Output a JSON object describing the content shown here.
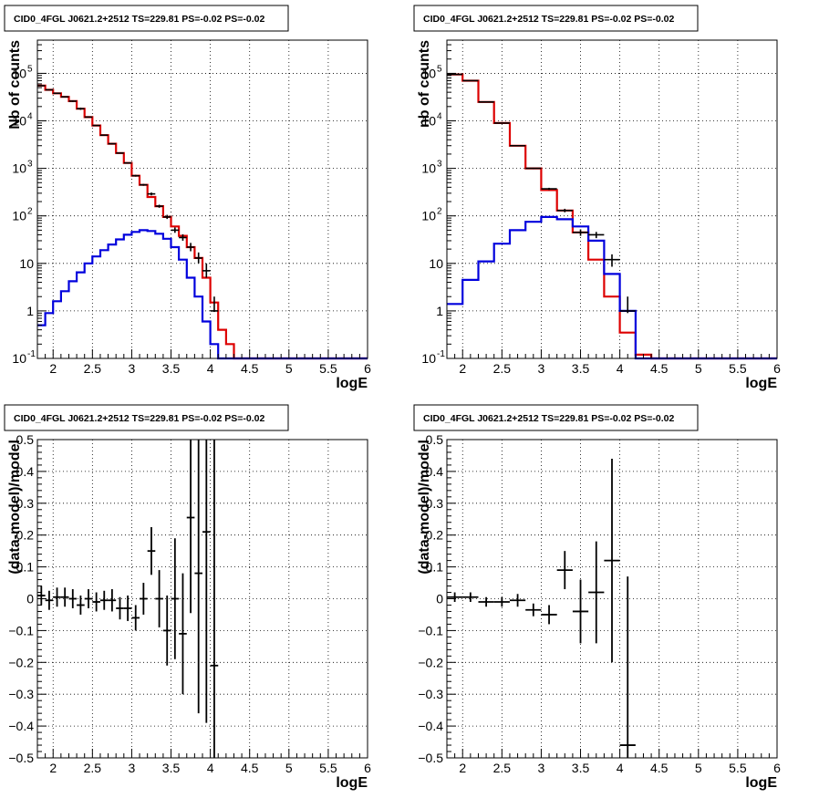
{
  "chart_data": [
    {
      "type": "step",
      "title": "CID0_4FGL J0621.2+2512 TS=229.81 PS=-0.02 PS=-0.02",
      "xlabel": "logE",
      "ylabel": "Nb of counts",
      "xscale": "linear",
      "yscale": "log",
      "xlim": [
        1.8,
        6.0
      ],
      "ylim": [
        0.1,
        500000
      ],
      "xticks": [
        "2",
        "2.5",
        "3",
        "3.5",
        "4",
        "4.5",
        "5",
        "5.5",
        "6"
      ],
      "yticks": [
        "10^-1",
        "1",
        "10",
        "10^2",
        "10^3",
        "10^4",
        "10^5"
      ],
      "grid": true,
      "bin_edges": [
        1.8,
        1.9,
        2.0,
        2.1,
        2.2,
        2.3,
        2.4,
        2.5,
        2.6,
        2.7,
        2.8,
        2.9,
        3.0,
        3.1,
        3.2,
        3.3,
        3.4,
        3.5,
        3.6,
        3.7,
        3.8,
        3.9,
        4.0,
        4.1,
        4.2,
        4.3,
        4.4,
        4.5,
        4.6,
        4.7,
        4.8,
        4.9,
        5.0,
        5.1,
        5.2,
        5.3,
        5.4,
        5.5,
        5.6,
        5.7,
        5.8,
        5.9,
        6.0
      ],
      "series": [
        {
          "color": "#dd0000",
          "style": "histogram",
          "values": [
            55000,
            45000,
            38000,
            32000,
            26000,
            18000,
            12000,
            8000,
            5000,
            3300,
            2100,
            1300,
            700,
            450,
            250,
            160,
            95,
            60,
            38,
            22,
            13,
            5,
            1.5,
            0.4,
            0.2,
            0.1,
            0.1,
            0.1,
            0.1,
            0.1,
            0.1,
            0.1,
            0.1,
            0.1,
            0.1,
            0.1,
            0.1,
            0.1,
            0.1,
            0.1,
            0.1,
            0.1
          ]
        },
        {
          "color": "#0000dd",
          "style": "histogram",
          "values": [
            0.5,
            0.9,
            1.6,
            2.6,
            4.2,
            6.5,
            10,
            14,
            19,
            25,
            32,
            40,
            46,
            50,
            48,
            42,
            33,
            22,
            12,
            5,
            2,
            0.6,
            0.2,
            0.1,
            0.1,
            0.1,
            0.1,
            0.1,
            0.1,
            0.1,
            0.1,
            0.1,
            0.1,
            0.1,
            0.1,
            0.1,
            0.1,
            0.1,
            0.1,
            0.1,
            0.1,
            0.1
          ]
        },
        {
          "color": "#000000",
          "style": "points",
          "x": [
            1.85,
            1.95,
            2.05,
            2.15,
            2.25,
            2.35,
            2.45,
            2.55,
            2.65,
            2.75,
            2.85,
            2.95,
            3.05,
            3.15,
            3.25,
            3.35,
            3.45,
            3.55,
            3.65,
            3.75,
            3.85,
            3.95,
            4.05
          ],
          "y": [
            55000,
            45000,
            38000,
            32000,
            26000,
            18000,
            12000,
            8000,
            5000,
            3300,
            2100,
            1300,
            700,
            450,
            290,
            160,
            95,
            50,
            35,
            22,
            13,
            7,
            1
          ],
          "yerr_low": [
            54000,
            44000,
            37000,
            31000,
            25000,
            17000,
            11700,
            7800,
            4850,
            3200,
            2040,
            1260,
            670,
            430,
            270,
            148,
            86,
            44,
            30,
            18,
            10,
            5,
            0.95
          ],
          "yerr_high": [
            56000,
            46000,
            39000,
            33000,
            27000,
            19000,
            12300,
            8200,
            5150,
            3400,
            2160,
            1340,
            730,
            470,
            310,
            172,
            105,
            57,
            41,
            27,
            17,
            10,
            2
          ]
        }
      ]
    },
    {
      "type": "step",
      "title": "CID0_4FGL J0621.2+2512 TS=229.81 PS=-0.02 PS=-0.02",
      "xlabel": "logE",
      "ylabel": "nb of counts",
      "xscale": "linear",
      "yscale": "log",
      "xlim": [
        1.8,
        6.0
      ],
      "ylim": [
        0.1,
        500000
      ],
      "xticks": [
        "2",
        "2.5",
        "3",
        "3.5",
        "4",
        "4.5",
        "5",
        "5.5",
        "6"
      ],
      "yticks": [
        "10^-1",
        "1",
        "10",
        "10^2",
        "10^3",
        "10^4",
        "10^5"
      ],
      "grid": true,
      "bin_edges": [
        1.8,
        2.0,
        2.2,
        2.4,
        2.6,
        2.8,
        3.0,
        3.2,
        3.4,
        3.6,
        3.8,
        4.0,
        4.2,
        4.4,
        4.6,
        4.8,
        5.0,
        5.2,
        5.4,
        5.6,
        5.8,
        6.0
      ],
      "series": [
        {
          "color": "#dd0000",
          "style": "histogram",
          "values": [
            95000,
            70000,
            25000,
            9000,
            3000,
            1000,
            350,
            130,
            45,
            12,
            2,
            0.35,
            0.12,
            0.1,
            0.1,
            0.1,
            0.1,
            0.1,
            0.1,
            0.1,
            0.1
          ]
        },
        {
          "color": "#0000dd",
          "style": "histogram",
          "values": [
            1.4,
            4.5,
            11,
            26,
            50,
            75,
            95,
            85,
            60,
            30,
            6,
            1,
            0.1,
            0.1,
            0.1,
            0.1,
            0.1,
            0.1,
            0.1,
            0.1,
            0.1
          ]
        },
        {
          "color": "#000000",
          "style": "points",
          "x": [
            1.9,
            2.1,
            2.3,
            2.5,
            2.7,
            2.9,
            3.1,
            3.3,
            3.5,
            3.7,
            3.9,
            4.1
          ],
          "y": [
            95000,
            70000,
            25000,
            9000,
            3000,
            1000,
            370,
            130,
            45,
            40,
            12,
            1
          ],
          "yerr_low": [
            94700,
            69700,
            24850,
            8900,
            2950,
            970,
            350,
            119,
            38,
            34,
            8.5,
            0.9
          ],
          "yerr_high": [
            95300,
            70300,
            25150,
            9100,
            3050,
            1030,
            390,
            141,
            52,
            46,
            15.5,
            2
          ]
        }
      ]
    },
    {
      "type": "scatter",
      "title": "CID0_4FGL J0621.2+2512 TS=229.81 PS=-0.02 PS=-0.02",
      "xlabel": "logE",
      "ylabel": "(data-model)/model",
      "xscale": "linear",
      "yscale": "linear",
      "xlim": [
        1.8,
        6.0
      ],
      "ylim": [
        -0.5,
        0.5
      ],
      "xticks": [
        "2",
        "2.5",
        "3",
        "3.5",
        "4",
        "4.5",
        "5",
        "5.5",
        "6"
      ],
      "yticks": [
        "-0.5",
        "-0.4",
        "-0.3",
        "-0.2",
        "-0.1",
        "0",
        "0.1",
        "0.2",
        "0.3",
        "0.4",
        "0.5"
      ],
      "grid": true,
      "series": [
        {
          "color": "#000000",
          "style": "errorbars",
          "x": [
            1.85,
            1.95,
            2.05,
            2.15,
            2.25,
            2.35,
            2.45,
            2.55,
            2.65,
            2.75,
            2.85,
            2.95,
            3.05,
            3.15,
            3.25,
            3.35,
            3.45,
            3.55,
            3.65,
            3.75,
            3.85,
            3.95,
            4.05
          ],
          "y": [
            0.01,
            -0.005,
            0.005,
            0.005,
            0.0,
            -0.02,
            0.0,
            -0.01,
            -0.005,
            -0.005,
            -0.03,
            -0.03,
            -0.06,
            0.0,
            0.15,
            0.0,
            -0.1,
            0.0,
            -0.11,
            0.255,
            0.08,
            0.21,
            -0.21
          ],
          "xerr": 0.05,
          "yerr": [
            0.03,
            0.03,
            0.03,
            0.03,
            0.03,
            0.03,
            0.03,
            0.03,
            0.03,
            0.035,
            0.035,
            0.04,
            0.04,
            0.05,
            0.075,
            0.09,
            0.11,
            0.19,
            0.19,
            0.3,
            0.44,
            0.6,
            0.9
          ]
        }
      ]
    },
    {
      "type": "scatter",
      "title": "CID0_4FGL J0621.2+2512 TS=229.81 PS=-0.02 PS=-0.02",
      "xlabel": "logE",
      "ylabel": "(data-model)/model",
      "xscale": "linear",
      "yscale": "linear",
      "xlim": [
        1.8,
        6.0
      ],
      "ylim": [
        -0.5,
        0.5
      ],
      "xticks": [
        "2",
        "2.5",
        "3",
        "3.5",
        "4",
        "4.5",
        "5",
        "5.5",
        "6"
      ],
      "yticks": [
        "-0.5",
        "-0.4",
        "-0.3",
        "-0.2",
        "-0.1",
        "0",
        "0.1",
        "0.2",
        "0.3",
        "0.4",
        "0.5"
      ],
      "grid": true,
      "series": [
        {
          "color": "#000000",
          "style": "errorbars",
          "x": [
            1.9,
            2.1,
            2.3,
            2.5,
            2.7,
            2.9,
            3.1,
            3.3,
            3.5,
            3.7,
            3.9,
            4.1
          ],
          "y": [
            0.005,
            0.005,
            -0.01,
            -0.01,
            -0.005,
            -0.035,
            -0.05,
            0.09,
            -0.04,
            0.02,
            0.12,
            -0.46
          ],
          "xerr": 0.1,
          "yerr": [
            0.015,
            0.015,
            0.015,
            0.015,
            0.02,
            0.02,
            0.03,
            0.06,
            0.1,
            0.16,
            0.32,
            0.53
          ]
        }
      ]
    }
  ]
}
